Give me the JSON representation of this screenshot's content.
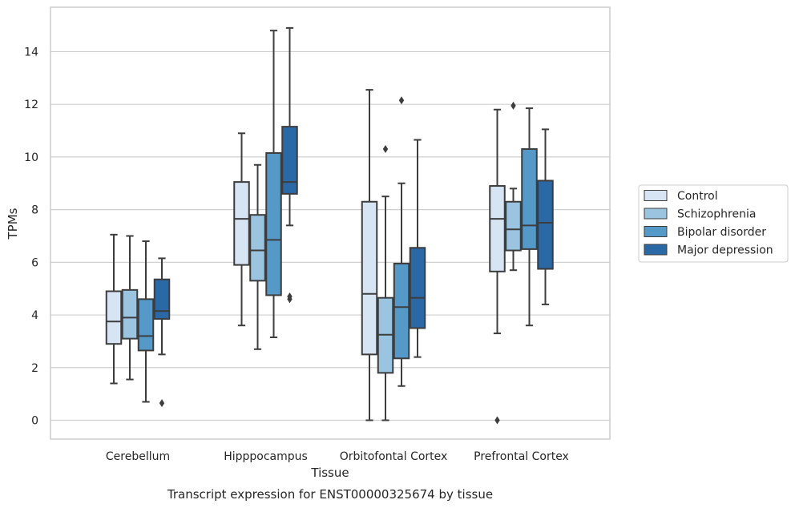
{
  "chart_data": {
    "type": "box",
    "xlabel": "Tissue",
    "ylabel": "TPMs",
    "caption": "Transcript expression for ENST00000325674 by tissue",
    "ylim": [
      -0.7,
      15.6
    ],
    "yticks": [
      0,
      2,
      4,
      6,
      8,
      10,
      12,
      14
    ],
    "grid": "horizontal",
    "legend_position": "right",
    "categories": [
      "Cerebellum",
      "Hipppocampus",
      "Orbitofontal Cortex",
      "Prefrontal Cortex"
    ],
    "series": [
      {
        "name": "Control",
        "color": "#d6e4f3",
        "boxes": [
          {
            "whislo": 1.4,
            "q1": 2.9,
            "med": 3.75,
            "q3": 4.9,
            "whishi": 7.05,
            "fliers": []
          },
          {
            "whislo": 3.6,
            "q1": 5.9,
            "med": 7.65,
            "q3": 9.05,
            "whishi": 10.9,
            "fliers": []
          },
          {
            "whislo": 0.0,
            "q1": 2.5,
            "med": 4.8,
            "q3": 8.3,
            "whishi": 12.55,
            "fliers": []
          },
          {
            "whislo": 3.3,
            "q1": 5.65,
            "med": 7.65,
            "q3": 8.9,
            "whishi": 11.8,
            "fliers": [
              0.0
            ]
          }
        ]
      },
      {
        "name": "Schizophrenia",
        "color": "#9ac4df",
        "boxes": [
          {
            "whislo": 1.55,
            "q1": 3.1,
            "med": 3.9,
            "q3": 4.95,
            "whishi": 7.0,
            "fliers": []
          },
          {
            "whislo": 2.7,
            "q1": 5.3,
            "med": 6.45,
            "q3": 7.8,
            "whishi": 9.7,
            "fliers": []
          },
          {
            "whislo": 0.0,
            "q1": 1.8,
            "med": 3.25,
            "q3": 4.65,
            "whishi": 8.5,
            "fliers": [
              10.3
            ]
          },
          {
            "whislo": 5.7,
            "q1": 6.45,
            "med": 7.25,
            "q3": 8.3,
            "whishi": 8.8,
            "fliers": [
              11.95
            ]
          }
        ]
      },
      {
        "name": "Bipolar disorder",
        "color": "#5599c8",
        "boxes": [
          {
            "whislo": 0.7,
            "q1": 2.65,
            "med": 3.2,
            "q3": 4.6,
            "whishi": 6.8,
            "fliers": []
          },
          {
            "whislo": 3.15,
            "q1": 4.75,
            "med": 6.85,
            "q3": 10.15,
            "whishi": 14.8,
            "fliers": []
          },
          {
            "whislo": 1.3,
            "q1": 2.35,
            "med": 4.3,
            "q3": 5.95,
            "whishi": 9.0,
            "fliers": [
              12.15
            ]
          },
          {
            "whislo": 3.6,
            "q1": 6.5,
            "med": 7.4,
            "q3": 10.3,
            "whishi": 11.85,
            "fliers": []
          }
        ]
      },
      {
        "name": "Major depression",
        "color": "#2a68a6",
        "boxes": [
          {
            "whislo": 2.5,
            "q1": 3.85,
            "med": 4.15,
            "q3": 5.35,
            "whishi": 6.15,
            "fliers": [
              0.65
            ]
          },
          {
            "whislo": 7.4,
            "q1": 8.6,
            "med": 9.05,
            "q3": 11.15,
            "whishi": 14.9,
            "fliers": [
              4.6,
              4.7
            ]
          },
          {
            "whislo": 2.4,
            "q1": 3.5,
            "med": 4.65,
            "q3": 6.55,
            "whishi": 10.65,
            "fliers": []
          },
          {
            "whislo": 4.4,
            "q1": 5.75,
            "med": 7.5,
            "q3": 9.1,
            "whishi": 11.05,
            "fliers": []
          }
        ]
      }
    ]
  }
}
